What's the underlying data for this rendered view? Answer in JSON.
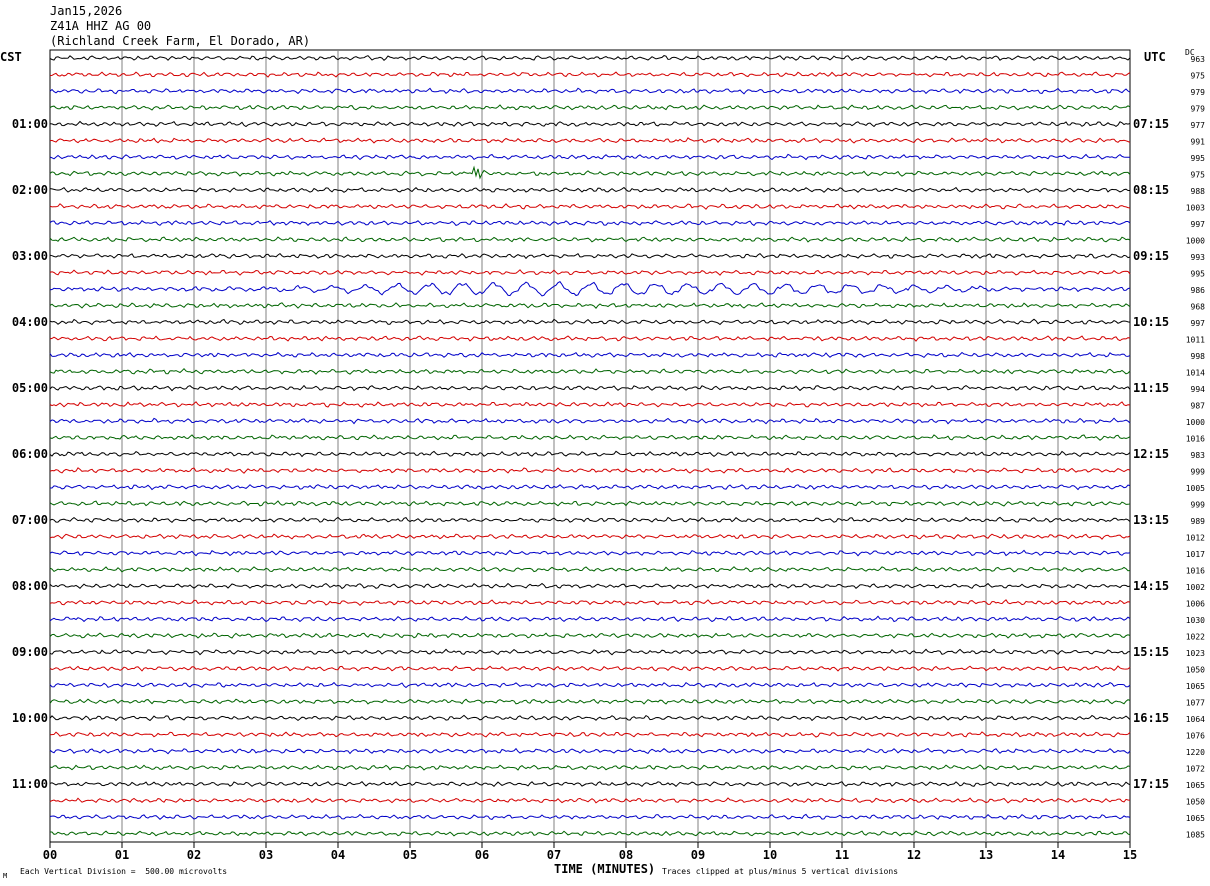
{
  "header": {
    "date": "Jan15,2026",
    "station": "Z41A HHZ AG 00",
    "location": "(Richland Creek Farm, El Dorado, AR)"
  },
  "timezones": {
    "left": "CST",
    "right": "UTC"
  },
  "dc_label": "DC",
  "footer": {
    "scale_text": "Each Vertical Division =  500.00 microvolts",
    "xlabel": "TIME (MINUTES)",
    "clip_text": "Traces clipped at plus/minus 5 vertical divisions",
    "corner_mark": "M"
  },
  "colors": {
    "trace_cycle": [
      "#000000",
      "#d40000",
      "#0000c8",
      "#006400"
    ],
    "grid": "#808080"
  },
  "chart_data": {
    "type": "line",
    "subtype": "helicorder",
    "x_ticks": [
      "00",
      "01",
      "02",
      "03",
      "04",
      "05",
      "06",
      "07",
      "08",
      "09",
      "10",
      "11",
      "12",
      "13",
      "14",
      "15"
    ],
    "xlim": [
      0,
      15
    ],
    "left_hour_labels": [
      "01:00",
      "02:00",
      "03:00",
      "04:00",
      "05:00",
      "06:00",
      "07:00",
      "08:00",
      "09:00",
      "10:00",
      "11:00"
    ],
    "right_hour_labels": [
      "07:15",
      "08:15",
      "09:15",
      "10:15",
      "11:15",
      "12:15",
      "13:15",
      "14:15",
      "15:15",
      "16:15",
      "17:15"
    ],
    "trace_count": 48,
    "dc_values": [
      "963",
      "975",
      "979",
      "979",
      "977",
      "991",
      "995",
      "975",
      "988",
      "1003",
      "997",
      "1000",
      "993",
      "995",
      "986",
      "968",
      "997",
      "1011",
      "998",
      "1014",
      "994",
      "987",
      "1000",
      "1016",
      "983",
      "999",
      "1005",
      "999",
      "989",
      "1012",
      "1017",
      "1016",
      "1002",
      "1006",
      "1030",
      "1022",
      "1023",
      "1050",
      "1065",
      "1077",
      "1064",
      "1076",
      "1220",
      "1072",
      "1065",
      "1050",
      "1065",
      "1085"
    ],
    "notable_events": [
      {
        "trace_index": 7,
        "minute_start": 5.8,
        "minute_end": 6.1,
        "description": "small burst"
      },
      {
        "trace_index": 14,
        "minute_start": 1.5,
        "minute_end": 14.0,
        "description": "long-period oscillation"
      }
    ]
  }
}
